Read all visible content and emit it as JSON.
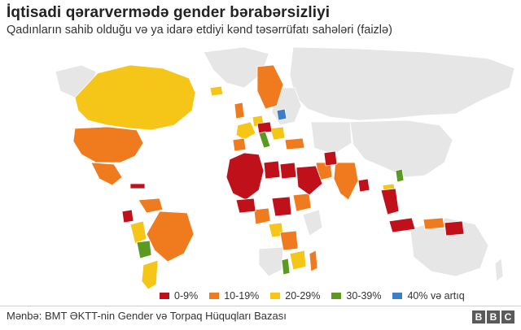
{
  "header": {
    "title": "İqtisadi qərarvermədə gender bərabərsizliyi",
    "subtitle": "Qadınların sahib olduğu və ya idarə etdiyi kənd təsərrüfatı sahələri (faizlə)"
  },
  "legend": {
    "items": [
      {
        "label": "0-9%",
        "color": "#c0111a"
      },
      {
        "label": "10-19%",
        "color": "#f07a1e"
      },
      {
        "label": "20-29%",
        "color": "#f5c518"
      },
      {
        "label": "30-39%",
        "color": "#5a9a22"
      },
      {
        "label": "40% və artıq",
        "color": "#3f7dc8"
      }
    ]
  },
  "colors": {
    "no_data": "#e6e6e6",
    "border": "#ffffff"
  },
  "footer": {
    "source": "Mənbə: BMT ƏKTT-nin Gender və Torpaq Hüquqları Bazası",
    "logo_letters": [
      "B",
      "B",
      "C"
    ]
  }
}
